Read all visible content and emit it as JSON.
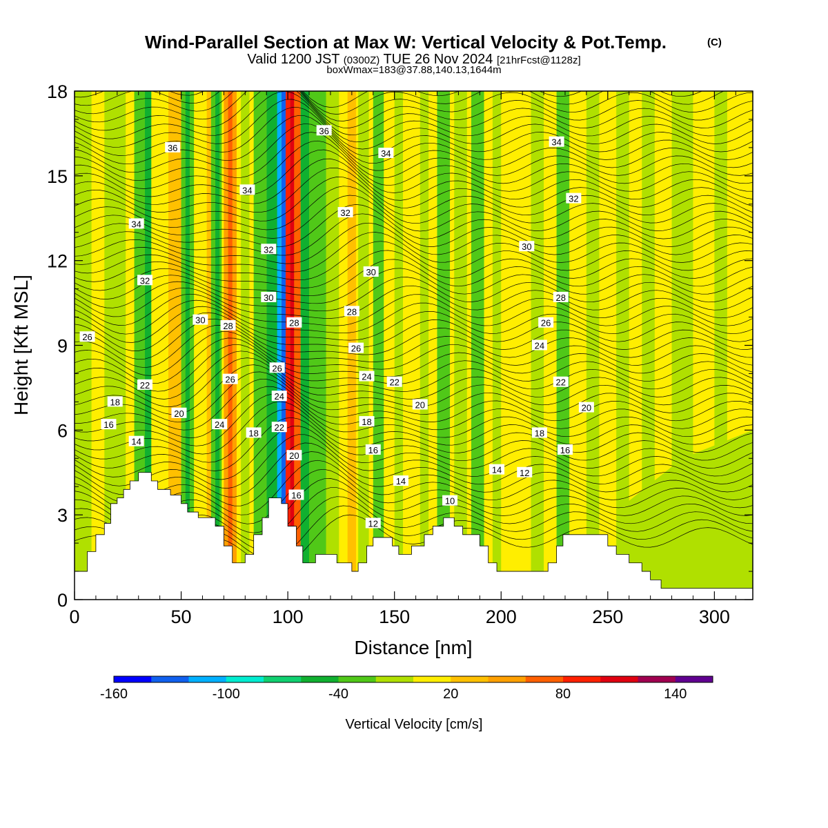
{
  "chart_data": {
    "type": "heatmap",
    "title": "Wind-Parallel Section at Max W: Vertical Velocity & Pot.Temp.",
    "title_mark": "(C)",
    "valid_prefix": "Valid 1200 JST",
    "valid_utc": "(0300Z)",
    "valid_date": "TUE 26 Nov 2024",
    "forecast": "[21hrFcst@1128z]",
    "boxline": "boxWmax=183@37.88,140.13,1644m",
    "xlabel": "Distance [nm]",
    "ylabel": "Height [Kft MSL]",
    "xlim": [
      0,
      318
    ],
    "ylim": [
      0,
      18
    ],
    "xticks": [
      "0",
      "50",
      "100",
      "150",
      "200",
      "250",
      "300"
    ],
    "yticks": [
      "0",
      "3",
      "6",
      "9",
      "12",
      "15",
      "18"
    ],
    "colorbar": {
      "label": "Vertical Velocity [cm/s]",
      "tick_labels": [
        "-160",
        "-100",
        "-40",
        "20",
        "80",
        "140"
      ],
      "colors": [
        "#0000ff",
        "#1060ee",
        "#00b0ff",
        "#00ecd0",
        "#10d070",
        "#10b030",
        "#50c818",
        "#b0e000",
        "#ffee00",
        "#ffc000",
        "#ffa000",
        "#ff6000",
        "#ff2000",
        "#e00010",
        "#a00050",
        "#600090"
      ]
    },
    "theta_labels": [
      {
        "text": "36",
        "x": 46,
        "y": 16.0
      },
      {
        "text": "34",
        "x": 29,
        "y": 13.3
      },
      {
        "text": "32",
        "x": 33,
        "y": 11.3
      },
      {
        "text": "26",
        "x": 6,
        "y": 9.3
      },
      {
        "text": "22",
        "x": 33,
        "y": 7.6
      },
      {
        "text": "18",
        "x": 19,
        "y": 7.0
      },
      {
        "text": "16",
        "x": 16,
        "y": 6.2
      },
      {
        "text": "14",
        "x": 29,
        "y": 5.6
      },
      {
        "text": "20",
        "x": 49,
        "y": 6.6
      },
      {
        "text": "30",
        "x": 59,
        "y": 9.9
      },
      {
        "text": "28",
        "x": 72,
        "y": 9.7
      },
      {
        "text": "26",
        "x": 73,
        "y": 7.8
      },
      {
        "text": "24",
        "x": 68,
        "y": 6.2
      },
      {
        "text": "18",
        "x": 84,
        "y": 5.9
      },
      {
        "text": "34",
        "x": 81,
        "y": 14.5
      },
      {
        "text": "32",
        "x": 91,
        "y": 12.4
      },
      {
        "text": "30",
        "x": 91,
        "y": 10.7
      },
      {
        "text": "28",
        "x": 103,
        "y": 9.8
      },
      {
        "text": "26",
        "x": 95,
        "y": 8.2
      },
      {
        "text": "24",
        "x": 96,
        "y": 7.2
      },
      {
        "text": "22",
        "x": 96,
        "y": 6.1
      },
      {
        "text": "20",
        "x": 103,
        "y": 5.1
      },
      {
        "text": "16",
        "x": 104,
        "y": 3.7
      },
      {
        "text": "36",
        "x": 117,
        "y": 16.6
      },
      {
        "text": "34",
        "x": 146,
        "y": 15.8
      },
      {
        "text": "32",
        "x": 127,
        "y": 13.7
      },
      {
        "text": "30",
        "x": 139,
        "y": 11.6
      },
      {
        "text": "28",
        "x": 130,
        "y": 10.2
      },
      {
        "text": "26",
        "x": 132,
        "y": 8.9
      },
      {
        "text": "24",
        "x": 137,
        "y": 7.9
      },
      {
        "text": "22",
        "x": 150,
        "y": 7.7
      },
      {
        "text": "18",
        "x": 137,
        "y": 6.3
      },
      {
        "text": "16",
        "x": 140,
        "y": 5.3
      },
      {
        "text": "14",
        "x": 153,
        "y": 4.2
      },
      {
        "text": "12",
        "x": 140,
        "y": 2.7
      },
      {
        "text": "20",
        "x": 162,
        "y": 6.9
      },
      {
        "text": "10",
        "x": 176,
        "y": 3.5
      },
      {
        "text": "34",
        "x": 226,
        "y": 16.2
      },
      {
        "text": "32",
        "x": 234,
        "y": 14.2
      },
      {
        "text": "30",
        "x": 212,
        "y": 12.5
      },
      {
        "text": "28",
        "x": 228,
        "y": 10.7
      },
      {
        "text": "26",
        "x": 221,
        "y": 9.8
      },
      {
        "text": "24",
        "x": 218,
        "y": 9.0
      },
      {
        "text": "22",
        "x": 228,
        "y": 7.7
      },
      {
        "text": "20",
        "x": 240,
        "y": 6.8
      },
      {
        "text": "18",
        "x": 218,
        "y": 5.9
      },
      {
        "text": "16",
        "x": 230,
        "y": 5.3
      },
      {
        "text": "14",
        "x": 198,
        "y": 4.6
      },
      {
        "text": "12",
        "x": 211,
        "y": 4.5
      }
    ]
  }
}
